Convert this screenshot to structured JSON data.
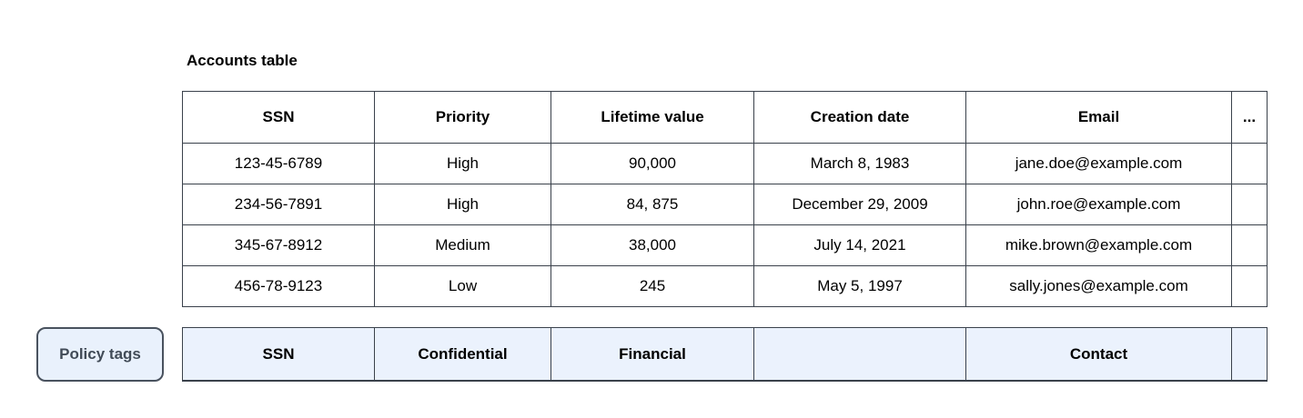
{
  "title": "Accounts table",
  "accounts_table": {
    "columns": {
      "ssn": "SSN",
      "priority": "Priority",
      "lifetime_value": "Lifetime value",
      "creation_date": "Creation date",
      "email": "Email",
      "more": "..."
    },
    "rows": [
      {
        "ssn": "123-45-6789",
        "priority": "High",
        "lifetime_value": "90,000",
        "creation_date": "March 8, 1983",
        "email": "jane.doe@example.com",
        "more": ""
      },
      {
        "ssn": "234-56-7891",
        "priority": "High",
        "lifetime_value": "84, 875",
        "creation_date": "December 29, 2009",
        "email": "john.roe@example.com",
        "more": ""
      },
      {
        "ssn": "345-67-8912",
        "priority": "Medium",
        "lifetime_value": "38,000",
        "creation_date": "July 14, 2021",
        "email": "mike.brown@example.com",
        "more": ""
      },
      {
        "ssn": "456-78-9123",
        "priority": "Low",
        "lifetime_value": "245",
        "creation_date": "May 5, 1997",
        "email": "sally.jones@example.com",
        "more": ""
      }
    ]
  },
  "policy_tags": {
    "button_label": "Policy tags",
    "tags": {
      "ssn": "SSN",
      "priority": "Confidential",
      "lifetime_value": "Financial",
      "creation_date": "",
      "email": "Contact",
      "more": ""
    }
  },
  "colors": {
    "table_border": "#3a414b",
    "policy_row_fill": "#ebf2fd",
    "policy_button_fill": "#e9f1fc",
    "policy_button_text": "#414b57",
    "text": "#000000",
    "background": "#ffffff"
  }
}
